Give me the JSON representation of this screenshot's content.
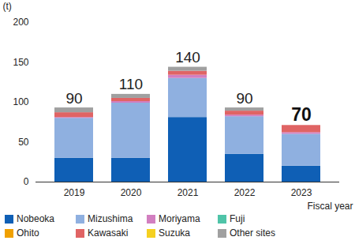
{
  "chart_data": {
    "type": "bar",
    "stacked": true,
    "x_label": "Fiscal year",
    "y_label": "(t)",
    "categories": [
      "2019",
      "2020",
      "2021",
      "2022",
      "2023"
    ],
    "series": [
      {
        "name": "Nobeoka",
        "color": "#0f5fb5",
        "values": [
          30,
          30,
          81,
          35,
          20
        ]
      },
      {
        "name": "Mizushima",
        "color": "#8fb0e0",
        "values": [
          50,
          69,
          49,
          47,
          40
        ]
      },
      {
        "name": "Moriyama",
        "color": "#d27fc0",
        "values": [
          1,
          2,
          4,
          2,
          2
        ]
      },
      {
        "name": "Fuji",
        "color": "#4fc4a8",
        "values": [
          0,
          0,
          0,
          0,
          0
        ]
      },
      {
        "name": "Ohito",
        "color": "#f0a000",
        "values": [
          0,
          0,
          0,
          0,
          0
        ]
      },
      {
        "name": "Kawasaki",
        "color": "#e06464",
        "values": [
          6,
          4,
          5,
          5,
          9
        ]
      },
      {
        "name": "Suzuka",
        "color": "#f5d020",
        "values": [
          0,
          0,
          0,
          0,
          0
        ]
      },
      {
        "name": "Other sites",
        "color": "#a0a0a0",
        "values": [
          6,
          5,
          5,
          4,
          0
        ]
      }
    ],
    "totals": [
      90,
      110,
      140,
      90,
      70
    ],
    "ylim": [
      0,
      200
    ],
    "yticks": [
      0,
      50,
      100,
      150,
      200
    ],
    "grid": false,
    "legend": "bottom"
  }
}
